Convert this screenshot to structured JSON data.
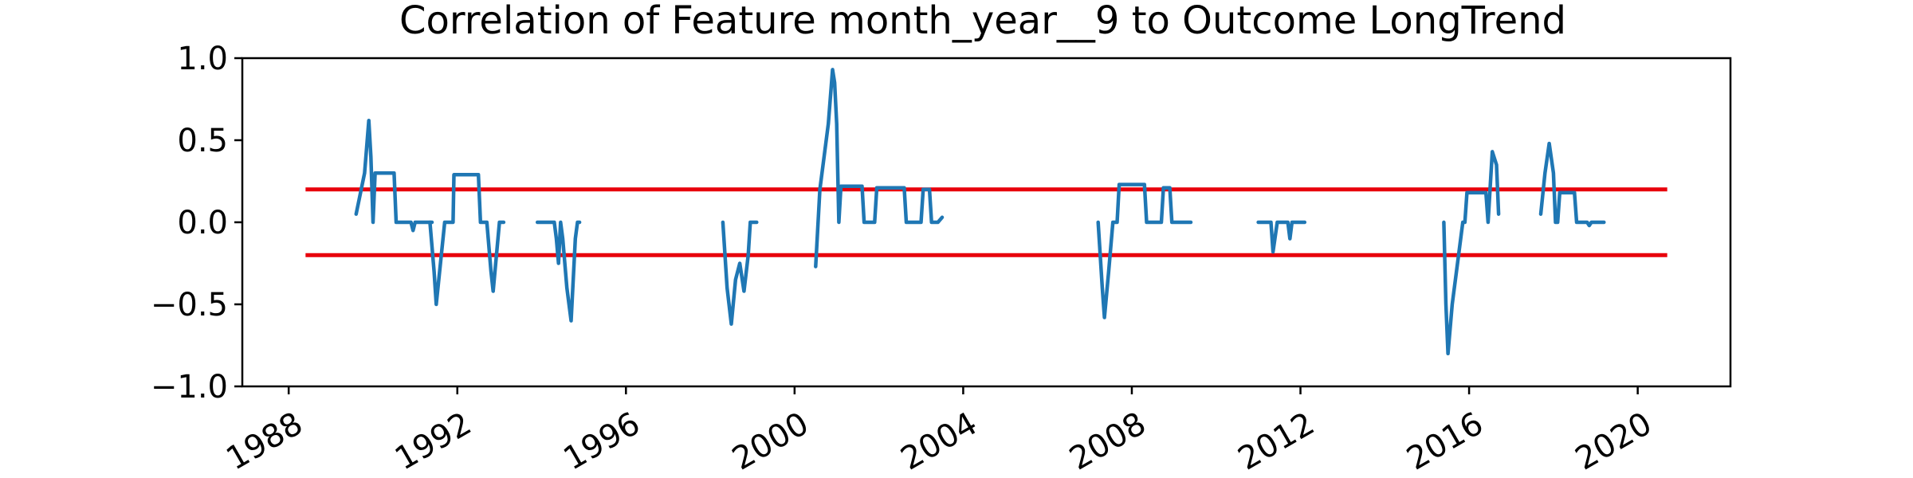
{
  "chart_data": {
    "type": "line",
    "title": "Correlation of Feature month_year__9 to Outcome LongTrend",
    "xlabel": "",
    "ylabel": "",
    "xlim": [
      1986.9,
      2022.2
    ],
    "ylim": [
      -1.0,
      1.0
    ],
    "x_ticks": [
      1988,
      1992,
      1996,
      2000,
      2004,
      2008,
      2012,
      2016,
      2020
    ],
    "x_tick_labels": [
      "1988",
      "1992",
      "1996",
      "2000",
      "2004",
      "2008",
      "2012",
      "2016",
      "2020"
    ],
    "y_ticks": [
      -1.0,
      -0.5,
      0.0,
      0.5,
      1.0
    ],
    "y_tick_labels": [
      "−1.0",
      "−0.5",
      "0.0",
      "0.5",
      "1.0"
    ],
    "grid": false,
    "colors": {
      "series": "#1f77b4",
      "threshold": "#e8000b",
      "axes": "#000000"
    },
    "thresholds": [
      {
        "y": 0.2,
        "x": [
          1988.4,
          2020.7
        ]
      },
      {
        "y": -0.2,
        "x": [
          1988.4,
          2020.7
        ]
      }
    ],
    "series": [
      {
        "segments": [
          [
            [
              1989.6,
              0.05
            ],
            [
              1989.8,
              0.3
            ],
            [
              1989.9,
              0.62
            ],
            [
              1989.95,
              0.4
            ],
            [
              1990.0,
              0.0
            ],
            [
              1990.05,
              0.3
            ],
            [
              1990.5,
              0.3
            ],
            [
              1990.55,
              0.0
            ],
            [
              1990.9,
              0.0
            ],
            [
              1990.95,
              -0.05
            ],
            [
              1991.0,
              0.0
            ],
            [
              1991.4,
              0.0
            ]
          ],
          [
            [
              1991.35,
              0.0
            ],
            [
              1991.45,
              -0.3
            ],
            [
              1991.5,
              -0.5
            ],
            [
              1991.6,
              -0.25
            ],
            [
              1991.7,
              0.0
            ],
            [
              1991.9,
              0.0
            ],
            [
              1991.92,
              0.29
            ],
            [
              1992.5,
              0.29
            ],
            [
              1992.55,
              0.0
            ],
            [
              1992.7,
              0.0
            ],
            [
              1992.8,
              -0.3
            ],
            [
              1992.85,
              -0.42
            ],
            [
              1993.0,
              0.0
            ],
            [
              1993.1,
              0.0
            ]
          ],
          [
            [
              1993.9,
              0.0
            ],
            [
              1994.3,
              0.0
            ],
            [
              1994.35,
              -0.1
            ],
            [
              1994.4,
              -0.25
            ],
            [
              1994.45,
              0.0
            ],
            [
              1994.5,
              -0.1
            ],
            [
              1994.6,
              -0.4
            ],
            [
              1994.7,
              -0.6
            ],
            [
              1994.8,
              -0.1
            ],
            [
              1994.85,
              0.0
            ],
            [
              1994.9,
              0.0
            ]
          ],
          [
            [
              1998.3,
              0.0
            ],
            [
              1998.4,
              -0.4
            ],
            [
              1998.5,
              -0.62
            ],
            [
              1998.6,
              -0.35
            ],
            [
              1998.7,
              -0.25
            ],
            [
              1998.8,
              -0.42
            ],
            [
              1998.9,
              -0.2
            ],
            [
              1998.95,
              0.0
            ],
            [
              1999.1,
              0.0
            ]
          ],
          [
            [
              2000.5,
              -0.27
            ],
            [
              2000.6,
              0.2
            ],
            [
              2000.8,
              0.6
            ],
            [
              2000.9,
              0.93
            ],
            [
              2000.95,
              0.85
            ],
            [
              2001.0,
              0.6
            ],
            [
              2001.05,
              0.0
            ],
            [
              2001.1,
              0.22
            ],
            [
              2001.6,
              0.22
            ],
            [
              2001.65,
              0.0
            ],
            [
              2001.9,
              0.0
            ],
            [
              2001.95,
              0.21
            ],
            [
              2002.6,
              0.21
            ],
            [
              2002.65,
              0.0
            ],
            [
              2003.0,
              0.0
            ],
            [
              2003.05,
              0.2
            ],
            [
              2003.2,
              0.2
            ],
            [
              2003.25,
              0.0
            ],
            [
              2003.4,
              0.0
            ],
            [
              2003.5,
              0.03
            ]
          ],
          [
            [
              2007.2,
              0.0
            ],
            [
              2007.3,
              -0.4
            ],
            [
              2007.35,
              -0.58
            ],
            [
              2007.45,
              -0.3
            ],
            [
              2007.55,
              0.0
            ],
            [
              2007.65,
              0.0
            ],
            [
              2007.7,
              0.23
            ],
            [
              2008.3,
              0.23
            ],
            [
              2008.35,
              0.0
            ],
            [
              2008.7,
              0.0
            ],
            [
              2008.75,
              0.21
            ],
            [
              2008.9,
              0.21
            ],
            [
              2008.95,
              0.0
            ],
            [
              2009.4,
              0.0
            ]
          ],
          [
            [
              2011.0,
              0.0
            ],
            [
              2011.3,
              0.0
            ],
            [
              2011.35,
              -0.18
            ],
            [
              2011.45,
              0.0
            ],
            [
              2011.7,
              0.0
            ],
            [
              2011.75,
              -0.1
            ],
            [
              2011.8,
              0.0
            ],
            [
              2012.1,
              0.0
            ]
          ],
          [
            [
              2015.4,
              0.0
            ],
            [
              2015.45,
              -0.5
            ],
            [
              2015.5,
              -0.8
            ],
            [
              2015.6,
              -0.5
            ],
            [
              2015.75,
              -0.2
            ],
            [
              2015.85,
              0.0
            ],
            [
              2015.9,
              0.0
            ],
            [
              2015.95,
              0.18
            ],
            [
              2016.4,
              0.18
            ],
            [
              2016.45,
              0.0
            ],
            [
              2016.55,
              0.43
            ],
            [
              2016.65,
              0.35
            ],
            [
              2016.7,
              0.05
            ]
          ],
          [
            [
              2017.7,
              0.05
            ],
            [
              2017.8,
              0.3
            ],
            [
              2017.9,
              0.48
            ],
            [
              2018.0,
              0.3
            ],
            [
              2018.05,
              0.0
            ],
            [
              2018.1,
              0.0
            ],
            [
              2018.15,
              0.18
            ],
            [
              2018.5,
              0.18
            ],
            [
              2018.55,
              0.0
            ],
            [
              2018.8,
              0.0
            ],
            [
              2018.85,
              -0.02
            ],
            [
              2018.9,
              0.0
            ],
            [
              2019.2,
              0.0
            ]
          ]
        ]
      }
    ]
  }
}
